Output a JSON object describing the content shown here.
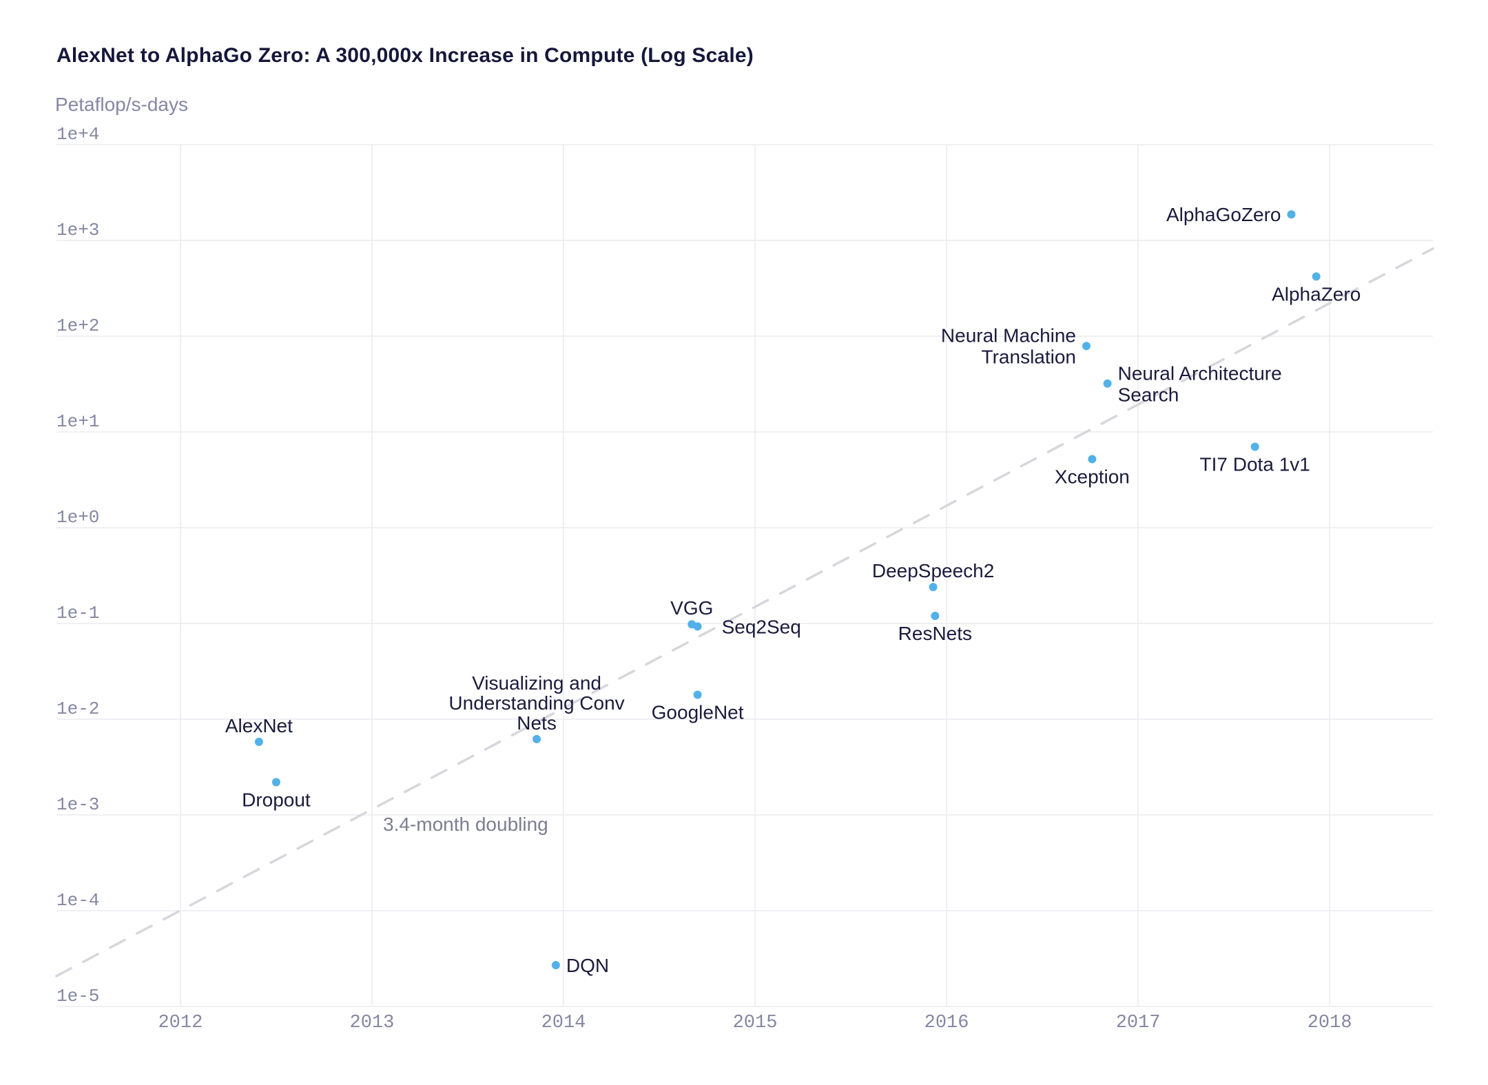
{
  "title": "AlexNet to AlphaGo Zero: A 300,000x Increase in Compute (Log Scale)",
  "y_axis_unit": "Petaflop/s-days",
  "colors": {
    "background": "#ffffff",
    "title_text": "#16173a",
    "point_fill": "#53b1e9",
    "point_label_text": "#1a1b3d",
    "tick_label_text": "#8587a3",
    "gridline": "#ebebf0",
    "trend_line": "#d6d6dc",
    "trend_label_text": "#7c7d92"
  },
  "chart_data": {
    "type": "scatter",
    "title": "AlexNet to AlphaGo Zero: A 300,000x Increase in Compute (Log Scale)",
    "xlabel": "",
    "ylabel": "Petaflop/s-days",
    "grid": true,
    "x_axis": {
      "range": [
        2011.353,
        2018.539
      ],
      "ticks": [
        2012,
        2013,
        2014,
        2015,
        2016,
        2017,
        2018
      ]
    },
    "y_axis": {
      "scale": "log",
      "range": [
        1e-05,
        10000.0
      ],
      "ticks": [
        "1e+4",
        "1e+3",
        "1e+2",
        "1e+1",
        "1e+0",
        "1e-1",
        "1e-2",
        "1e-3",
        "1e-4",
        "1e-5"
      ]
    },
    "trend_line": {
      "label": "3.4-month doubling",
      "style": "dashed",
      "start": {
        "year": 2011.353,
        "petaflop_s_days": 2.08e-05
      },
      "end": {
        "year": 2018.539,
        "petaflop_s_days": 820
      }
    },
    "points": [
      {
        "name": "AlexNet",
        "label": "AlexNet",
        "year": 2012.41,
        "petaflop_s_days": 0.0058,
        "label_position": "above"
      },
      {
        "name": "Dropout",
        "label": "Dropout",
        "year": 2012.5,
        "petaflop_s_days": 0.0022,
        "label_position": "below"
      },
      {
        "name": "Visualizing and Understanding Conv Nets",
        "label": "Visualizing and\nUnderstanding Conv\nNets",
        "year": 2013.86,
        "petaflop_s_days": 0.0062,
        "label_position": "above"
      },
      {
        "name": "DQN",
        "label": "DQN",
        "year": 2013.96,
        "petaflop_s_days": 2.7e-05,
        "label_position": "right"
      },
      {
        "name": "VGG",
        "label": "VGG",
        "year": 2014.67,
        "petaflop_s_days": 0.098,
        "label_position": "above"
      },
      {
        "name": "Seq2Seq",
        "label": "Seq2Seq",
        "year": 2014.7,
        "petaflop_s_days": 0.093,
        "label_position": "right",
        "label_gap": 35
      },
      {
        "name": "GoogleNet",
        "label": "GoogleNet",
        "year": 2014.7,
        "petaflop_s_days": 0.018,
        "label_position": "below"
      },
      {
        "name": "DeepSpeech2",
        "label": "DeepSpeech2",
        "year": 2015.93,
        "petaflop_s_days": 0.24,
        "label_position": "above"
      },
      {
        "name": "ResNets",
        "label": "ResNets",
        "year": 2015.94,
        "petaflop_s_days": 0.12,
        "label_position": "below"
      },
      {
        "name": "Neural Machine Translation",
        "label": "Neural Machine\nTranslation",
        "year": 2016.73,
        "petaflop_s_days": 79,
        "label_position": "left"
      },
      {
        "name": "Neural Architecture Search",
        "label": "Neural Architecture\nSearch",
        "year": 2016.84,
        "petaflop_s_days": 32,
        "label_position": "right"
      },
      {
        "name": "Xception",
        "label": "Xception",
        "year": 2016.76,
        "petaflop_s_days": 5.2,
        "label_position": "below"
      },
      {
        "name": "TI7 Dota 1v1",
        "label": "TI7 Dota 1v1",
        "year": 2017.61,
        "petaflop_s_days": 7.0,
        "label_position": "below"
      },
      {
        "name": "AlphaGoZero",
        "label": "AlphaGoZero",
        "year": 2017.8,
        "petaflop_s_days": 1870,
        "label_position": "left"
      },
      {
        "name": "AlphaZero",
        "label": "AlphaZero",
        "year": 2017.93,
        "petaflop_s_days": 420,
        "label_position": "below"
      }
    ]
  }
}
